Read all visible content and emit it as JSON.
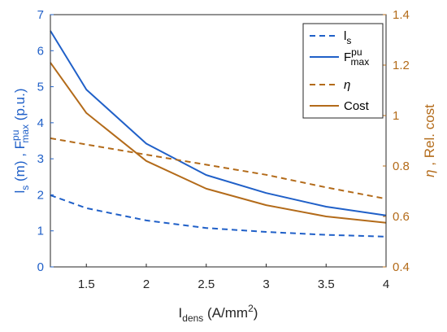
{
  "chart_data": {
    "type": "line",
    "x": [
      1.2,
      1.5,
      2.0,
      2.5,
      3.0,
      3.5,
      4.0
    ],
    "left_axis": {
      "ylim": [
        0,
        7
      ],
      "ticks": [
        "0",
        "1",
        "2",
        "3",
        "4",
        "5",
        "6",
        "7"
      ],
      "label_parts": [
        "l",
        "s",
        " (m) , F",
        "pu",
        "max",
        " (p.u.)"
      ],
      "color": "#2060c8"
    },
    "right_axis": {
      "ylim": [
        0.4,
        1.4
      ],
      "ticks": [
        "0.4",
        "0.6",
        "0.8",
        "1",
        "1.2",
        "1.4"
      ],
      "label_parts": [
        "η",
        " , Rel. cost"
      ],
      "color": "#b36b1a"
    },
    "x_axis": {
      "xlim": [
        1.2,
        4.0
      ],
      "ticks": [
        "1.5",
        "2",
        "2.5",
        "3",
        "3.5",
        "4"
      ],
      "label_parts": [
        "I",
        "dens",
        " (A/mm",
        "2",
        ")"
      ]
    },
    "series": [
      {
        "name_parts": [
          "l",
          "s"
        ],
        "axis": "left",
        "style": "dashed",
        "color": "#2060c8",
        "values": [
          1.99,
          1.63,
          1.29,
          1.08,
          0.97,
          0.89,
          0.84
        ]
      },
      {
        "name_parts": [
          "F",
          "pu",
          "max"
        ],
        "axis": "left",
        "style": "solid",
        "color": "#2060c8",
        "values": [
          6.55,
          4.92,
          3.42,
          2.55,
          2.05,
          1.67,
          1.43
        ]
      },
      {
        "name_parts": [
          "η"
        ],
        "axis": "right",
        "style": "dashed",
        "color": "#b36b1a",
        "values": [
          0.91,
          0.885,
          0.845,
          0.805,
          0.765,
          0.715,
          0.67
        ]
      },
      {
        "name_parts": [
          "Cost"
        ],
        "axis": "right",
        "style": "solid",
        "color": "#b36b1a",
        "values": [
          1.21,
          1.01,
          0.82,
          0.71,
          0.645,
          0.6,
          0.575
        ]
      }
    ],
    "legend_position": "top-right",
    "grid": false
  }
}
